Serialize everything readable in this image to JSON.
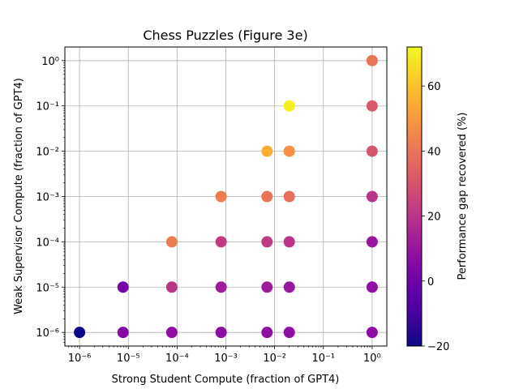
{
  "chart_data": {
    "type": "scatter",
    "title": "Chess Puzzles (Figure 3e)",
    "xlabel": "Strong Student Compute (fraction of GPT4)",
    "ylabel": "Weak Supervisor Compute (fraction of GPT4)",
    "x_scale": "log",
    "y_scale": "log",
    "xlim": [
      5e-07,
      2
    ],
    "ylim": [
      5e-07,
      2
    ],
    "x_ticks": [
      1e-06,
      1e-05,
      0.0001,
      0.001,
      0.01,
      0.1,
      1
    ],
    "x_tick_labels": [
      "10⁻⁶",
      "10⁻⁵",
      "10⁻⁴",
      "10⁻³",
      "10⁻²",
      "10⁻¹",
      "10⁰"
    ],
    "y_ticks": [
      1e-06,
      1e-05,
      0.0001,
      0.001,
      0.01,
      0.1,
      1
    ],
    "y_tick_labels": [
      "10⁻⁶",
      "10⁻⁵",
      "10⁻⁴",
      "10⁻³",
      "10⁻²",
      "10⁻¹",
      "10⁰"
    ],
    "grid": true,
    "colormap": "plasma",
    "colorbar": {
      "label": "Performance gap recovered (%)",
      "range": [
        -20,
        72
      ],
      "ticks": [
        -20,
        0,
        20,
        40,
        60
      ],
      "tick_labels": [
        "−20",
        "0",
        "20",
        "40",
        "60"
      ]
    },
    "points": [
      {
        "x": 1e-06,
        "y": 1e-06,
        "value": -20
      },
      {
        "x": 7.8e-06,
        "y": 1e-06,
        "value": 5
      },
      {
        "x": 7.8e-06,
        "y": 1e-05,
        "value": 1
      },
      {
        "x": 7.8e-05,
        "y": 1e-06,
        "value": 8
      },
      {
        "x": 7.8e-05,
        "y": 1e-05,
        "value": 20
      },
      {
        "x": 7.8e-05,
        "y": 0.0001,
        "value": 42
      },
      {
        "x": 0.0008,
        "y": 1e-06,
        "value": 7
      },
      {
        "x": 0.0008,
        "y": 1e-05,
        "value": 12
      },
      {
        "x": 0.0008,
        "y": 0.0001,
        "value": 22
      },
      {
        "x": 0.0008,
        "y": 0.001,
        "value": 42
      },
      {
        "x": 0.007,
        "y": 1e-06,
        "value": 8
      },
      {
        "x": 0.007,
        "y": 1e-05,
        "value": 12
      },
      {
        "x": 0.007,
        "y": 0.0001,
        "value": 22
      },
      {
        "x": 0.007,
        "y": 0.001,
        "value": 40
      },
      {
        "x": 0.007,
        "y": 0.01,
        "value": 55
      },
      {
        "x": 0.02,
        "y": 1e-06,
        "value": 8
      },
      {
        "x": 0.02,
        "y": 1e-05,
        "value": 10
      },
      {
        "x": 0.02,
        "y": 0.0001,
        "value": 20
      },
      {
        "x": 0.02,
        "y": 0.001,
        "value": 38
      },
      {
        "x": 0.02,
        "y": 0.01,
        "value": 48
      },
      {
        "x": 0.02,
        "y": 0.1,
        "value": 70
      },
      {
        "x": 1,
        "y": 1e-06,
        "value": 7
      },
      {
        "x": 1,
        "y": 1e-05,
        "value": 8
      },
      {
        "x": 1,
        "y": 0.0001,
        "value": 10
      },
      {
        "x": 1,
        "y": 0.001,
        "value": 20
      },
      {
        "x": 1,
        "y": 0.01,
        "value": 30
      },
      {
        "x": 1,
        "y": 0.1,
        "value": 32
      },
      {
        "x": 1,
        "y": 1,
        "value": 40
      }
    ]
  }
}
